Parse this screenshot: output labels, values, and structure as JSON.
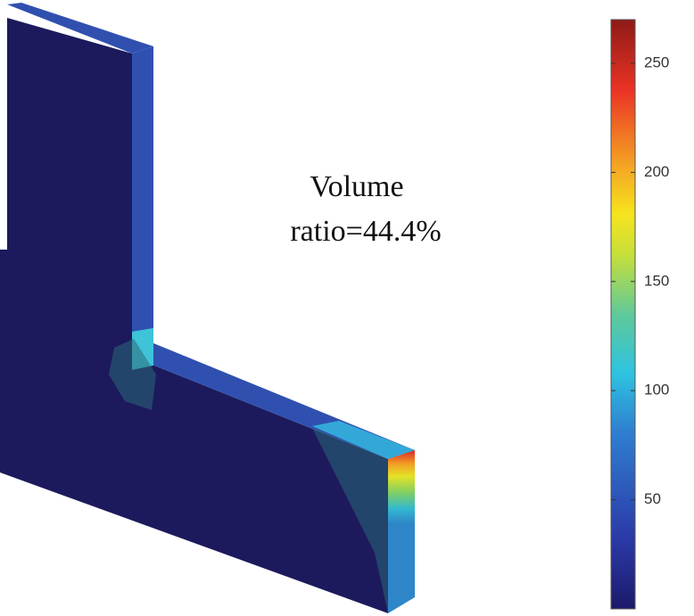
{
  "annotation": [
    "Volume",
    "ratio=44.4%"
  ],
  "colorbar": {
    "lim": [
      0,
      270
    ],
    "ticks": [
      50,
      100,
      150,
      200,
      250
    ]
  }
}
